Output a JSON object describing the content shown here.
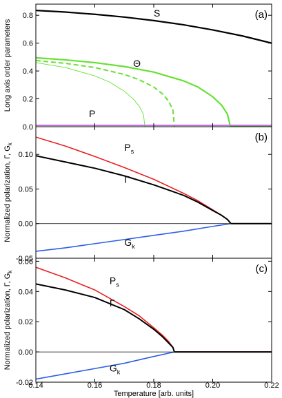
{
  "chart_data": [
    {
      "type": "line",
      "panel_label": "(a)",
      "ylabel": "Long axis order parameters",
      "xlim": [
        0.14,
        0.22
      ],
      "ylim": [
        0.0,
        0.88
      ],
      "yticks": [
        "0.0",
        "0.2",
        "0.4",
        "0.6",
        "0.8"
      ],
      "annotations": [
        {
          "text": "S",
          "at": [
            0.18,
            0.79
          ]
        },
        {
          "text": "Θ",
          "at": [
            0.173,
            0.43
          ]
        },
        {
          "text": "P",
          "at": [
            0.158,
            0.07
          ]
        }
      ],
      "series": [
        {
          "color": "#000000",
          "style": "solid",
          "width": 2.2,
          "x": [
            0.14,
            0.15,
            0.16,
            0.17,
            0.18,
            0.19,
            0.2,
            0.21,
            0.22
          ],
          "y": [
            0.835,
            0.823,
            0.807,
            0.787,
            0.762,
            0.732,
            0.695,
            0.652,
            0.6
          ]
        },
        {
          "color": "#66e033",
          "style": "solid",
          "width": 2.2,
          "x": [
            0.14,
            0.15,
            0.16,
            0.17,
            0.18,
            0.19,
            0.195,
            0.2,
            0.203,
            0.205,
            0.206,
            0.22
          ],
          "y": [
            0.495,
            0.48,
            0.46,
            0.432,
            0.392,
            0.33,
            0.285,
            0.215,
            0.155,
            0.09,
            0.0,
            0.0
          ]
        },
        {
          "color": "#66e033",
          "style": "dashed",
          "width": 2.0,
          "x": [
            0.14,
            0.15,
            0.16,
            0.17,
            0.175,
            0.18,
            0.183,
            0.185,
            0.1865,
            0.187
          ],
          "y": [
            0.475,
            0.455,
            0.425,
            0.375,
            0.338,
            0.285,
            0.235,
            0.185,
            0.12,
            0.0
          ]
        },
        {
          "color": "#66e033",
          "style": "solid",
          "width": 0.9,
          "x": [
            0.14,
            0.15,
            0.16,
            0.165,
            0.17,
            0.173,
            0.175,
            0.1765,
            0.177
          ],
          "y": [
            0.46,
            0.425,
            0.365,
            0.32,
            0.255,
            0.2,
            0.15,
            0.09,
            0.0
          ]
        },
        {
          "color": "#c070e0",
          "style": "solid",
          "width": 2.0,
          "x": [
            0.14,
            0.22
          ],
          "y": [
            0.01,
            0.01
          ]
        }
      ]
    },
    {
      "type": "line",
      "panel_label": "(b)",
      "ylabel": "Normalized polarization, Γ, G",
      "ylabel_sub": "k",
      "xlim": [
        0.14,
        0.22
      ],
      "ylim": [
        -0.05,
        0.14
      ],
      "yticks": [
        "-0.05",
        "0.00",
        "0.05",
        "0.10"
      ],
      "annotations": [
        {
          "text": "P",
          "sub": "s",
          "at": [
            0.17,
            0.105
          ]
        },
        {
          "text": "Γ",
          "at": [
            0.17,
            0.059
          ]
        },
        {
          "text": "G",
          "sub": "k",
          "at": [
            0.17,
            -0.032
          ]
        }
      ],
      "series": [
        {
          "color": "#e82020",
          "style": "solid",
          "width": 1.6,
          "x": [
            0.14,
            0.15,
            0.16,
            0.17,
            0.18,
            0.19,
            0.195,
            0.2,
            0.203,
            0.205,
            0.2062,
            0.22
          ],
          "y": [
            0.125,
            0.112,
            0.097,
            0.081,
            0.064,
            0.044,
            0.033,
            0.02,
            0.012,
            0.006,
            0.0,
            0.0
          ]
        },
        {
          "color": "#000000",
          "style": "solid",
          "width": 2.0,
          "x": [
            0.14,
            0.15,
            0.16,
            0.17,
            0.18,
            0.19,
            0.195,
            0.2,
            0.203,
            0.205,
            0.2062,
            0.22
          ],
          "y": [
            0.098,
            0.089,
            0.08,
            0.069,
            0.056,
            0.041,
            0.031,
            0.019,
            0.012,
            0.006,
            0.0,
            0.0
          ]
        },
        {
          "color": "#2b5ee8",
          "style": "solid",
          "width": 1.6,
          "x": [
            0.14,
            0.15,
            0.16,
            0.17,
            0.18,
            0.19,
            0.2,
            0.2062
          ],
          "y": [
            -0.04,
            -0.035,
            -0.029,
            -0.023,
            -0.017,
            -0.011,
            -0.004,
            0.0
          ]
        },
        {
          "color": "#000000",
          "style": "solid",
          "width": 0.8,
          "x": [
            0.14,
            0.22
          ],
          "y": [
            0.0,
            0.0
          ]
        }
      ]
    },
    {
      "type": "line",
      "panel_label": "(c)",
      "ylabel": "Normalized polarization, Γ, G",
      "ylabel_sub": "k",
      "xlabel": "Temperature [arb. units]",
      "xlim": [
        0.14,
        0.22
      ],
      "ylim": [
        -0.02,
        0.062
      ],
      "xticks": [
        "0.14",
        "0.16",
        "0.18",
        "0.20",
        "0.22"
      ],
      "yticks": [
        "-0.02",
        "0.00",
        "0.02",
        "0.04",
        "0.06"
      ],
      "annotations": [
        {
          "text": "P",
          "sub": "s",
          "at": [
            0.165,
            0.045
          ]
        },
        {
          "text": "Γ",
          "at": [
            0.165,
            0.03
          ]
        },
        {
          "text": "G",
          "sub": "k",
          "at": [
            0.165,
            -0.013
          ]
        }
      ],
      "series": [
        {
          "color": "#e82020",
          "style": "solid",
          "width": 1.6,
          "x": [
            0.14,
            0.15,
            0.16,
            0.17,
            0.175,
            0.18,
            0.183,
            0.185,
            0.1865,
            0.187,
            0.22
          ],
          "y": [
            0.056,
            0.049,
            0.041,
            0.03,
            0.024,
            0.016,
            0.011,
            0.007,
            0.003,
            0.0,
            0.0
          ]
        },
        {
          "color": "#000000",
          "style": "solid",
          "width": 2.0,
          "x": [
            0.14,
            0.15,
            0.16,
            0.17,
            0.175,
            0.18,
            0.183,
            0.185,
            0.1865,
            0.187,
            0.22
          ],
          "y": [
            0.045,
            0.041,
            0.036,
            0.028,
            0.022,
            0.015,
            0.01,
            0.006,
            0.003,
            0.0,
            0.0
          ]
        },
        {
          "color": "#2b5ee8",
          "style": "solid",
          "width": 1.6,
          "x": [
            0.14,
            0.15,
            0.16,
            0.17,
            0.18,
            0.187
          ],
          "y": [
            -0.018,
            -0.0145,
            -0.011,
            -0.0075,
            -0.003,
            0.0
          ]
        },
        {
          "color": "#000000",
          "style": "solid",
          "width": 0.8,
          "x": [
            0.14,
            0.22
          ],
          "y": [
            0.0,
            0.0
          ]
        }
      ]
    }
  ]
}
